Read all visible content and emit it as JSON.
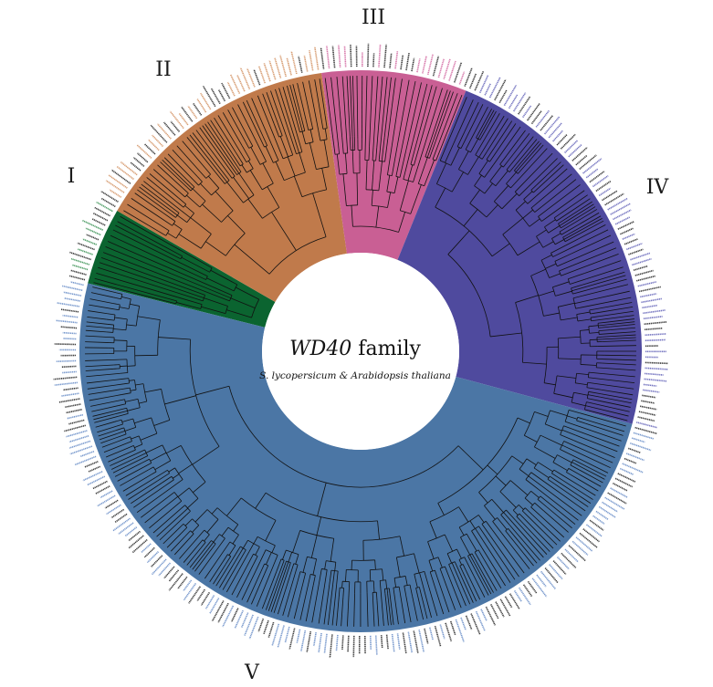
{
  "figure": {
    "title_italic": "WD40",
    "title_rest": " family",
    "subtitle": "S. lycopersicum & Arabidopsis thaliana"
  },
  "clades": [
    {
      "id": "I",
      "label": "I",
      "color": "#0b6430",
      "label_color": "#2e8b4a"
    },
    {
      "id": "II",
      "label": "II",
      "color": "#c07a4b",
      "label_color": "#d08a58"
    },
    {
      "id": "III",
      "label": "III",
      "color": "#c95f94",
      "label_color": "#d0609c"
    },
    {
      "id": "IV",
      "label": "IV",
      "color": "#4f4a9e",
      "label_color": "#5b5bb5"
    },
    {
      "id": "V",
      "label": "V",
      "color": "#4b76a5",
      "label_color": "#5f86c4"
    }
  ],
  "leaf_text_colors": {
    "arabidopsis": "#1a1a1a"
  }
}
